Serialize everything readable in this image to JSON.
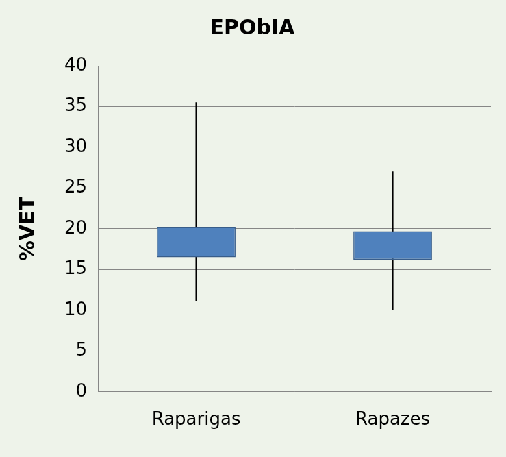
{
  "chart_data": {
    "type": "box",
    "title": "EPObIA",
    "y_label": "%VET",
    "categories": [
      "Raparigas",
      "Rapazes"
    ],
    "min": [
      11.2,
      10.1
    ],
    "q1": [
      16.5,
      16.2
    ],
    "q3": [
      20.2,
      19.7
    ],
    "max": [
      35.5,
      27.0
    ],
    "color": "#4f81bd",
    "ylim": [
      0,
      40
    ],
    "yticks": [
      0,
      5,
      10,
      15,
      20,
      25,
      30,
      35,
      40
    ],
    "grid": true
  }
}
